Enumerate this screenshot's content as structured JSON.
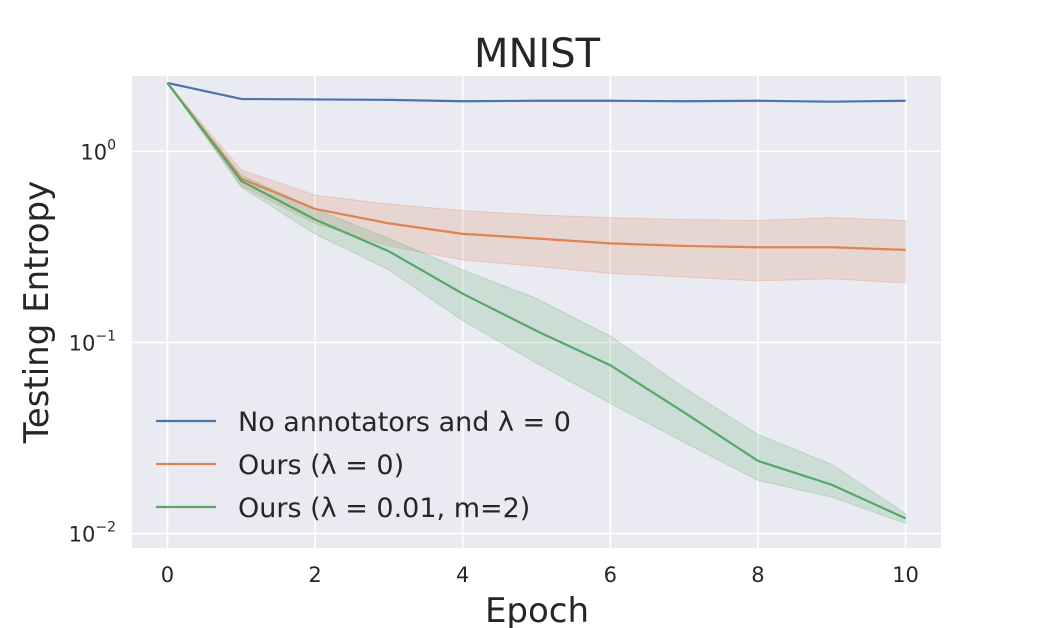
{
  "chart_data": {
    "type": "line",
    "title": "MNIST",
    "xlabel": "Epoch",
    "ylabel": "Testing Entropy",
    "yscale": "log",
    "xlim": [
      -0.48,
      10.48
    ],
    "ylim": [
      0.0084,
      2.48
    ],
    "xticks": [
      0,
      2,
      4,
      6,
      8,
      10
    ],
    "yticks": [
      {
        "value": 1,
        "base": "10",
        "exp": "0"
      },
      {
        "value": 0.1,
        "base": "10",
        "exp": "−1"
      },
      {
        "value": 0.01,
        "base": "10",
        "exp": "−2"
      }
    ],
    "grid": true,
    "legend_position": "lower-left",
    "x": [
      0,
      1,
      2,
      3,
      4,
      5,
      6,
      7,
      8,
      9,
      10
    ],
    "series": [
      {
        "name": "No annotators and λ = 0",
        "color": "#4c72b0",
        "values": [
          2.28,
          1.88,
          1.87,
          1.86,
          1.83,
          1.84,
          1.84,
          1.83,
          1.84,
          1.82,
          1.84
        ]
      },
      {
        "name": "Ours (λ = 0)",
        "color": "#dd8452",
        "values": [
          2.28,
          0.72,
          0.5,
          0.42,
          0.37,
          0.35,
          0.33,
          0.32,
          0.315,
          0.315,
          0.305
        ],
        "band_lower": [
          2.28,
          0.66,
          0.42,
          0.32,
          0.27,
          0.25,
          0.23,
          0.22,
          0.21,
          0.215,
          0.205
        ],
        "band_upper": [
          2.28,
          0.8,
          0.59,
          0.53,
          0.49,
          0.465,
          0.45,
          0.44,
          0.435,
          0.45,
          0.435
        ]
      },
      {
        "name": "Ours (λ = 0.01, m=2)",
        "color": "#55a868",
        "values": [
          2.28,
          0.7,
          0.44,
          0.3,
          0.18,
          0.115,
          0.076,
          0.043,
          0.024,
          0.018,
          0.012
        ],
        "band_lower": [
          2.28,
          0.65,
          0.37,
          0.24,
          0.13,
          0.078,
          0.048,
          0.03,
          0.019,
          0.0155,
          0.0113
        ],
        "band_upper": [
          2.28,
          0.75,
          0.5,
          0.35,
          0.24,
          0.17,
          0.108,
          0.058,
          0.033,
          0.023,
          0.0127
        ]
      }
    ]
  }
}
